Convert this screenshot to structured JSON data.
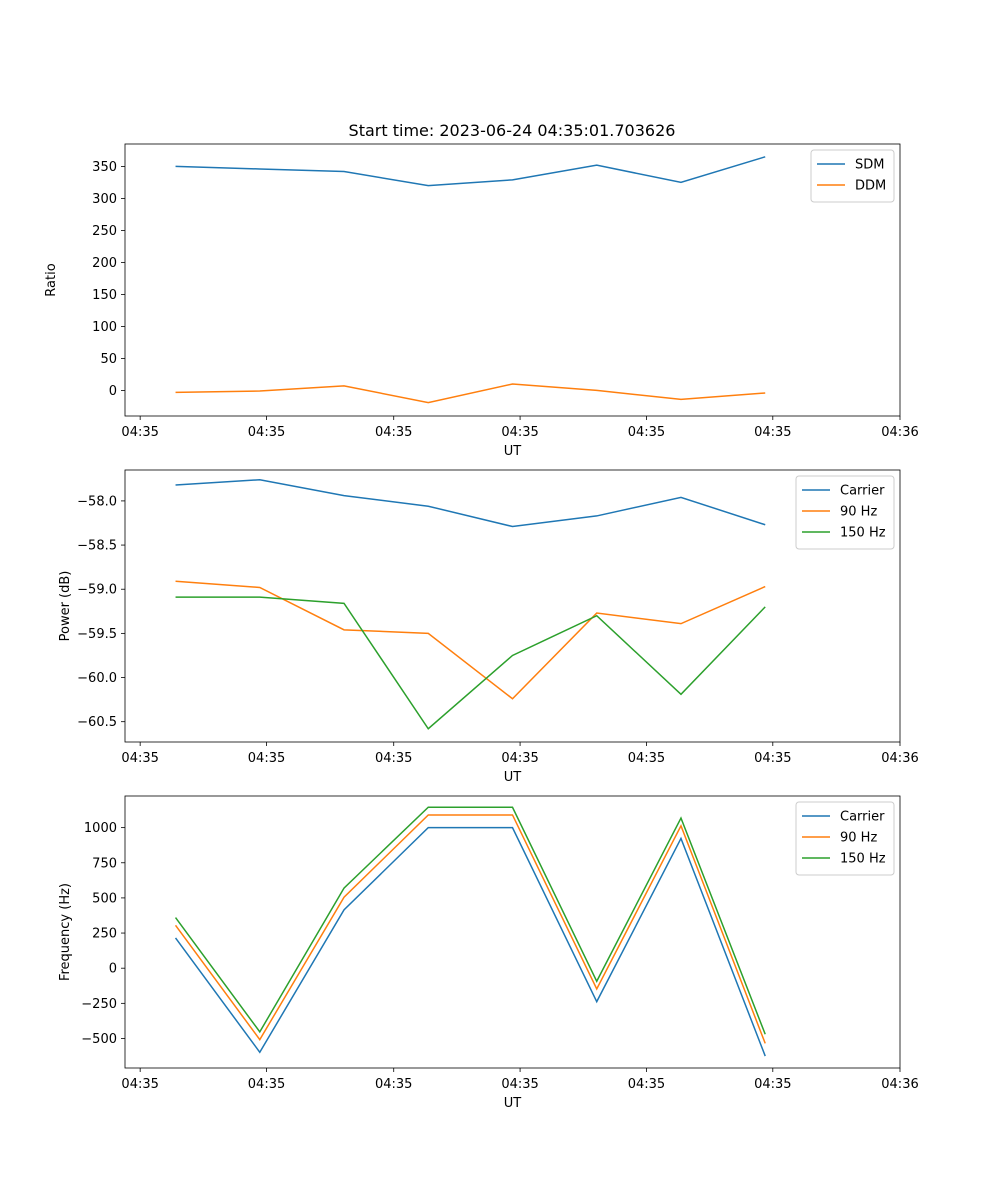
{
  "figure": {
    "title": "Start time: 2023-06-24 04:35:01.703626"
  },
  "colors": {
    "blue": "#1f77b4",
    "orange": "#ff7f0e",
    "green": "#2ca02c"
  },
  "chart_data": [
    {
      "type": "line",
      "title": "Start time: 2023-06-24 04:35:01.703626",
      "xlabel": "UT",
      "ylabel": "Ratio",
      "x": [
        0.6,
        1.6,
        2.6,
        3.6,
        4.6,
        5.6,
        6.6,
        7.6
      ],
      "xlim": [
        0,
        9.2
      ],
      "xticks": [
        0.18,
        1.68,
        3.19,
        4.69,
        6.19,
        7.69,
        9.2
      ],
      "xtick_labels": [
        "04:35",
        "04:35",
        "04:35",
        "04:35",
        "04:35",
        "04:35",
        "04:36"
      ],
      "ylim": [
        -40,
        385
      ],
      "yticks": [
        0,
        50,
        100,
        150,
        200,
        250,
        300,
        350
      ],
      "ytick_labels": [
        "0",
        "50",
        "100",
        "150",
        "200",
        "250",
        "300",
        "350"
      ],
      "legend": "top-right",
      "series": [
        {
          "name": "SDM",
          "color": "#1f77b4",
          "values": [
            350,
            346,
            342,
            320,
            329,
            352,
            325,
            365
          ]
        },
        {
          "name": "DDM",
          "color": "#ff7f0e",
          "values": [
            -3,
            -1,
            7,
            -19,
            10,
            0,
            -14,
            -4
          ]
        }
      ]
    },
    {
      "type": "line",
      "xlabel": "UT",
      "ylabel": "Power (dB)",
      "x": [
        0.6,
        1.6,
        2.6,
        3.6,
        4.6,
        5.6,
        6.6,
        7.6
      ],
      "xlim": [
        0,
        9.2
      ],
      "xticks": [
        0.18,
        1.68,
        3.19,
        4.69,
        6.19,
        7.69,
        9.2
      ],
      "xtick_labels": [
        "04:35",
        "04:35",
        "04:35",
        "04:35",
        "04:35",
        "04:35",
        "04:36"
      ],
      "ylim": [
        -60.73,
        -57.65
      ],
      "yticks": [
        -60.5,
        -60.0,
        -59.5,
        -59.0,
        -58.5,
        -58.0
      ],
      "ytick_labels": [
        "−60.5",
        "−60.0",
        "−59.5",
        "−59.0",
        "−58.5",
        "−58.0"
      ],
      "legend": "top-right",
      "series": [
        {
          "name": "Carrier",
          "color": "#1f77b4",
          "values": [
            -57.82,
            -57.76,
            -57.94,
            -58.06,
            -58.29,
            -58.17,
            -57.96,
            -58.27
          ]
        },
        {
          "name": "90 Hz",
          "color": "#ff7f0e",
          "values": [
            -58.91,
            -58.98,
            -59.46,
            -59.5,
            -60.24,
            -59.27,
            -59.39,
            -58.97
          ]
        },
        {
          "name": "150 Hz",
          "color": "#2ca02c",
          "values": [
            -59.09,
            -59.09,
            -59.16,
            -60.58,
            -59.75,
            -59.3,
            -60.19,
            -59.2
          ]
        }
      ]
    },
    {
      "type": "line",
      "xlabel": "UT",
      "ylabel": "Frequency (Hz)",
      "x": [
        0.6,
        1.6,
        2.6,
        3.6,
        4.6,
        5.6,
        6.6,
        7.6
      ],
      "xlim": [
        0,
        9.2
      ],
      "xticks": [
        0.18,
        1.68,
        3.19,
        4.69,
        6.19,
        7.69,
        9.2
      ],
      "xtick_labels": [
        "04:35",
        "04:35",
        "04:35",
        "04:35",
        "04:35",
        "04:35",
        "04:36"
      ],
      "ylim": [
        -710,
        1225
      ],
      "yticks": [
        -500,
        -250,
        0,
        250,
        500,
        750,
        1000
      ],
      "ytick_labels": [
        "−500",
        "−250",
        "0",
        "250",
        "500",
        "750",
        "1000"
      ],
      "legend": "top-right",
      "series": [
        {
          "name": "Carrier",
          "color": "#1f77b4",
          "values": [
            215,
            -598,
            415,
            1000,
            1000,
            -238,
            923,
            -625
          ]
        },
        {
          "name": "90 Hz",
          "color": "#ff7f0e",
          "values": [
            305,
            -508,
            505,
            1090,
            1090,
            -148,
            1013,
            -535
          ]
        },
        {
          "name": "150 Hz",
          "color": "#2ca02c",
          "values": [
            360,
            -453,
            570,
            1145,
            1145,
            -93,
            1068,
            -470
          ]
        }
      ]
    }
  ]
}
